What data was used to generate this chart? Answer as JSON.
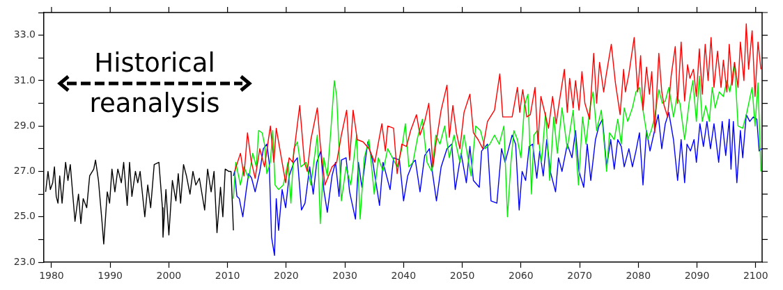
{
  "chart_data": {
    "type": "line",
    "marker": "none",
    "line_style": "solid",
    "grid": false,
    "legend": false,
    "xlim": [
      1978.7,
      2101.1
    ],
    "ylim": [
      23,
      34
    ],
    "xticks": [
      1980,
      1990,
      2000,
      2010,
      2020,
      2030,
      2040,
      2050,
      2060,
      2070,
      2080,
      2090,
      2100
    ],
    "yticks": [
      {
        "value": 23,
        "label": "23.0"
      },
      {
        "value": 24,
        "label": null
      },
      {
        "value": 25,
        "label": "25.0"
      },
      {
        "value": 26,
        "label": null
      },
      {
        "value": 27,
        "label": "27.0"
      },
      {
        "value": 28,
        "label": null
      },
      {
        "value": 29,
        "label": "29.0"
      },
      {
        "value": 30,
        "label": null
      },
      {
        "value": 31,
        "label": "31.0"
      },
      {
        "value": 32,
        "label": null
      },
      {
        "value": 33,
        "label": "33.0"
      },
      {
        "value": 34,
        "label": null
      }
    ],
    "annotations": [
      "Historical reanalysis"
    ],
    "series": [
      {
        "color": "#000000",
        "x": [
          1979.0,
          1979.4,
          1979.8,
          1980.2,
          1980.5,
          1980.8,
          1981.1,
          1981.4,
          1981.8,
          1982.4,
          1982.8,
          1983.2,
          1984.0,
          1984.6,
          1985.0,
          1985.4,
          1986.0,
          1986.5,
          1987.2,
          1987.5,
          1988.0,
          1988.6,
          1988.9,
          1989.5,
          1989.9,
          1990.3,
          1990.8,
          1991.3,
          1991.9,
          1992.3,
          1992.9,
          1993.3,
          1993.7,
          1994.3,
          1994.7,
          1995.1,
          1995.9,
          1996.4,
          1996.9,
          1997.5,
          1998.3,
          1998.9,
          1999.0,
          1999.5,
          2000.0,
          2000.6,
          2001.2,
          2001.6,
          2002.0,
          2002.5,
          2003.0,
          2003.6,
          2004.1,
          2004.6,
          2005.2,
          2006.1,
          2006.6,
          2007.2,
          2007.7,
          2008.2,
          2008.8,
          2009.2,
          2009.6,
          2010.2,
          2010.6,
          2011.0
        ],
        "values": [
          26.1,
          27.0,
          26.2,
          26.5,
          27.2,
          25.9,
          25.6,
          26.8,
          25.6,
          27.4,
          26.6,
          27.3,
          24.8,
          26.0,
          24.7,
          25.8,
          25.4,
          26.8,
          27.1,
          27.5,
          26.6,
          24.8,
          23.8,
          26.1,
          25.6,
          27.1,
          26.1,
          27.1,
          26.5,
          27.4,
          25.5,
          27.4,
          25.9,
          27.0,
          26.5,
          27.0,
          25.0,
          26.4,
          25.4,
          27.3,
          27.4,
          25.4,
          24.1,
          26.2,
          24.2,
          26.6,
          25.7,
          26.9,
          25.6,
          27.3,
          26.8,
          26.0,
          27.0,
          26.4,
          26.7,
          25.3,
          27.1,
          26.1,
          27.0,
          24.3,
          26.3,
          25.0,
          27.1,
          27.0,
          27.0,
          24.4
        ]
      },
      {
        "color": "#ff0000",
        "x": [
          2011.2,
          2012.2,
          2012.8,
          2013.4,
          2014.0,
          2014.7,
          2015.5,
          2016.3,
          2017.3,
          2017.9,
          2018.3,
          2018.9,
          2019.9,
          2020.5,
          2021.1,
          2022.3,
          2023.1,
          2023.6,
          2024.2,
          2025.3,
          2025.8,
          2026.6,
          2027.8,
          2028.6,
          2029.4,
          2030.3,
          2030.8,
          2031.4,
          2032.1,
          2033.1,
          2034.1,
          2035.1,
          2036.3,
          2036.9,
          2037.3,
          2038.3,
          2038.9,
          2039.7,
          2040.5,
          2041.2,
          2042.2,
          2042.8,
          2043.6,
          2044.3,
          2045.0,
          2045.5,
          2046.4,
          2047.4,
          2047.8,
          2048.4,
          2049.0,
          2049.6,
          2050.3,
          2051.3,
          2051.9,
          2052.7,
          2053.5,
          2054.3,
          2055.5,
          2056.4,
          2056.9,
          2058.5,
          2059.4,
          2059.8,
          2060.3,
          2061.0,
          2061.6,
          2062.4,
          2062.9,
          2063.4,
          2064.7,
          2065.4,
          2066.0,
          2066.5,
          2067.4,
          2067.9,
          2068.3,
          2068.9,
          2069.3,
          2069.9,
          2070.4,
          2070.9,
          2071.7,
          2072.4,
          2072.9,
          2073.4,
          2074.1,
          2074.5,
          2075.4,
          2076.1,
          2076.9,
          2077.5,
          2077.8,
          2078.4,
          2079.3,
          2079.9,
          2080.4,
          2080.8,
          2081.4,
          2081.9,
          2082.3,
          2082.8,
          2083.5,
          2084.0,
          2084.4,
          2085.0,
          2085.6,
          2086.3,
          2086.7,
          2087.3,
          2087.9,
          2088.4,
          2088.8,
          2089.4,
          2089.9,
          2090.4,
          2090.9,
          2091.4,
          2091.9,
          2092.4,
          2092.9,
          2093.5,
          2094.1,
          2094.5,
          2095.1,
          2095.5,
          2096.0,
          2096.4,
          2097.0,
          2097.4,
          2098.0,
          2098.4,
          2098.8,
          2099.4,
          2099.9,
          2100.4,
          2100.9
        ],
        "values": [
          27.0,
          27.8,
          26.8,
          28.7,
          27.5,
          26.7,
          28.0,
          27.2,
          29.0,
          27.4,
          28.9,
          28.0,
          26.5,
          27.6,
          27.4,
          29.9,
          27.4,
          27.0,
          28.4,
          29.8,
          28.2,
          26.4,
          27.2,
          27.4,
          28.6,
          29.7,
          27.5,
          29.7,
          28.4,
          28.3,
          28.0,
          27.4,
          29.1,
          27.9,
          29.0,
          28.9,
          26.9,
          28.2,
          28.1,
          28.8,
          29.5,
          28.6,
          29.2,
          30.0,
          27.2,
          28.2,
          29.7,
          30.8,
          28.5,
          29.9,
          28.7,
          28.0,
          29.6,
          30.4,
          28.7,
          28.4,
          28.0,
          29.2,
          29.7,
          31.3,
          29.4,
          29.4,
          30.7,
          29.6,
          30.6,
          29.4,
          29.5,
          30.7,
          28.2,
          30.3,
          28.9,
          30.3,
          29.1,
          30.0,
          31.5,
          29.6,
          31.1,
          29.8,
          31.0,
          29.7,
          31.4,
          30.0,
          29.3,
          32.2,
          30.0,
          31.8,
          30.5,
          31.2,
          32.6,
          30.9,
          29.5,
          31.5,
          30.5,
          31.3,
          32.9,
          30.5,
          32.1,
          29.7,
          31.6,
          30.4,
          31.4,
          28.7,
          32.2,
          30.5,
          29.9,
          29.4,
          31.2,
          32.5,
          30.0,
          32.7,
          30.1,
          31.7,
          31.1,
          31.5,
          30.3,
          32.4,
          30.4,
          32.6,
          31.0,
          32.9,
          30.7,
          32.3,
          30.7,
          31.9,
          30.5,
          32.6,
          30.8,
          31.8,
          30.7,
          32.7,
          31.0,
          33.5,
          31.5,
          33.2,
          30.3,
          32.7,
          31.5
        ]
      },
      {
        "color": "#00ee00",
        "x": [
          2011.0,
          2011.4,
          2012.2,
          2012.8,
          2013.6,
          2014.3,
          2014.9,
          2015.3,
          2015.9,
          2016.3,
          2016.7,
          2017.3,
          2017.7,
          2018.1,
          2018.7,
          2019.5,
          2020.3,
          2020.8,
          2021.3,
          2021.9,
          2022.5,
          2023.4,
          2024.2,
          2024.8,
          2025.3,
          2025.8,
          2026.4,
          2027.0,
          2027.6,
          2028.2,
          2028.6,
          2029.4,
          2030.2,
          2031.0,
          2032.0,
          2032.6,
          2033.3,
          2034.1,
          2035.0,
          2035.7,
          2036.5,
          2037.3,
          2038.1,
          2038.9,
          2039.7,
          2040.3,
          2040.9,
          2041.6,
          2042.4,
          2043.2,
          2044.0,
          2044.8,
          2045.5,
          2046.2,
          2047.0,
          2047.8,
          2048.6,
          2049.6,
          2050.3,
          2051.5,
          2052.3,
          2053.1,
          2053.9,
          2054.7,
          2055.5,
          2056.3,
          2057.1,
          2057.7,
          2058.3,
          2058.8,
          2059.4,
          2060.0,
          2060.6,
          2061.2,
          2061.8,
          2062.2,
          2062.8,
          2063.5,
          2064.2,
          2064.9,
          2065.6,
          2066.2,
          2067.0,
          2067.9,
          2068.9,
          2069.8,
          2070.5,
          2071.1,
          2071.7,
          2072.3,
          2072.9,
          2073.7,
          2074.6,
          2075.1,
          2075.9,
          2076.5,
          2077.1,
          2077.6,
          2078.2,
          2079.0,
          2079.6,
          2080.2,
          2080.8,
          2081.6,
          2082.2,
          2082.8,
          2083.5,
          2084.1,
          2084.6,
          2085.2,
          2086.0,
          2086.6,
          2087.1,
          2087.9,
          2088.7,
          2089.3,
          2089.9,
          2090.4,
          2090.9,
          2091.5,
          2092.1,
          2092.6,
          2093.1,
          2093.8,
          2094.5,
          2095.1,
          2095.6,
          2096.4,
          2097.0,
          2097.8,
          2098.5,
          2099.4,
          2099.9,
          2100.4,
          2100.9
        ],
        "values": [
          25.8,
          27.4,
          26.4,
          27.2,
          26.7,
          27.8,
          27.2,
          28.8,
          28.7,
          28.2,
          26.9,
          27.4,
          28.8,
          26.4,
          26.2,
          26.4,
          27.4,
          25.6,
          28.0,
          28.3,
          27.2,
          27.4,
          26.4,
          27.6,
          28.6,
          24.7,
          27.6,
          26.8,
          28.8,
          31.0,
          30.3,
          25.7,
          27.2,
          26.4,
          28.6,
          24.9,
          27.6,
          28.4,
          26.0,
          27.6,
          27.0,
          28.0,
          27.6,
          27.2,
          28.0,
          29.1,
          27.2,
          27.4,
          28.5,
          29.3,
          27.4,
          27.0,
          28.6,
          28.2,
          29.0,
          27.6,
          28.6,
          27.4,
          28.6,
          26.8,
          29.0,
          28.8,
          28.0,
          28.2,
          28.6,
          28.2,
          29.0,
          25.0,
          27.4,
          28.8,
          28.4,
          27.6,
          29.9,
          30.4,
          26.0,
          28.6,
          28.8,
          27.4,
          29.6,
          26.6,
          29.4,
          27.8,
          29.8,
          28.0,
          29.7,
          26.4,
          29.4,
          28.2,
          29.7,
          30.5,
          28.8,
          29.7,
          27.0,
          28.7,
          28.4,
          29.3,
          28.2,
          29.8,
          29.2,
          29.8,
          30.5,
          30.7,
          29.7,
          28.4,
          28.8,
          29.4,
          30.6,
          30.0,
          30.1,
          30.7,
          29.4,
          30.3,
          30.0,
          28.4,
          30.1,
          31.0,
          29.2,
          31.2,
          29.2,
          29.9,
          29.2,
          30.7,
          29.8,
          30.5,
          30.3,
          31.0,
          30.5,
          31.8,
          29.0,
          28.9,
          29.6,
          30.7,
          29.0,
          30.9,
          27.0
        ]
      },
      {
        "color": "#0000ff",
        "x": [
          2011.0,
          2011.2,
          2011.6,
          2012.0,
          2012.6,
          2013.2,
          2013.6,
          2014.1,
          2014.7,
          2015.5,
          2016.1,
          2016.7,
          2017.1,
          2017.5,
          2018.0,
          2018.3,
          2018.7,
          2019.3,
          2019.9,
          2020.5,
          2021.3,
          2021.9,
          2022.6,
          2023.2,
          2024.0,
          2024.6,
          2025.2,
          2025.9,
          2026.4,
          2027.0,
          2027.8,
          2028.4,
          2029.0,
          2029.4,
          2030.2,
          2030.8,
          2031.8,
          2032.3,
          2032.9,
          2033.9,
          2034.7,
          2035.9,
          2036.5,
          2037.7,
          2038.3,
          2039.3,
          2040.0,
          2040.7,
          2041.6,
          2042.0,
          2042.8,
          2043.6,
          2044.4,
          2045.0,
          2045.6,
          2046.4,
          2047.4,
          2048.2,
          2048.8,
          2049.8,
          2050.7,
          2051.3,
          2051.9,
          2052.9,
          2053.3,
          2054.3,
          2054.9,
          2055.9,
          2056.7,
          2057.3,
          2057.9,
          2058.5,
          2059.1,
          2059.7,
          2060.2,
          2060.8,
          2061.4,
          2062.0,
          2062.7,
          2063.2,
          2063.8,
          2064.4,
          2065.0,
          2065.9,
          2066.4,
          2067.0,
          2067.9,
          2068.7,
          2069.3,
          2069.9,
          2070.7,
          2071.3,
          2071.9,
          2072.7,
          2073.3,
          2073.9,
          2074.6,
          2075.3,
          2075.9,
          2076.5,
          2077.1,
          2077.6,
          2078.4,
          2079.0,
          2079.6,
          2080.2,
          2080.8,
          2081.4,
          2082.0,
          2082.6,
          2083.4,
          2084.0,
          2084.6,
          2085.2,
          2086.0,
          2086.7,
          2087.3,
          2087.9,
          2088.3,
          2088.9,
          2089.5,
          2089.9,
          2090.5,
          2091.1,
          2091.7,
          2092.3,
          2092.9,
          2093.7,
          2094.3,
          2094.9,
          2095.5,
          2095.8,
          2096.2,
          2096.8,
          2097.4,
          2097.8,
          2098.4,
          2099.0,
          2099.6,
          2100.2,
          2100.6,
          2101.0
        ],
        "values": [
          26.8,
          27.0,
          25.9,
          25.8,
          25.0,
          26.2,
          26.9,
          26.7,
          26.1,
          27.0,
          28.0,
          28.2,
          27.4,
          24.1,
          23.3,
          25.8,
          24.4,
          26.2,
          25.4,
          26.8,
          27.4,
          27.6,
          25.3,
          25.6,
          27.2,
          26.0,
          27.4,
          27.9,
          26.2,
          25.2,
          26.8,
          27.4,
          25.9,
          27.5,
          27.6,
          26.1,
          24.9,
          27.4,
          26.3,
          28.3,
          27.5,
          25.5,
          27.4,
          26.2,
          27.6,
          27.5,
          25.7,
          26.8,
          27.4,
          27.5,
          26.1,
          27.7,
          28.0,
          26.8,
          25.7,
          27.2,
          28.0,
          28.2,
          26.2,
          27.8,
          26.5,
          28.1,
          26.6,
          26.3,
          27.9,
          28.2,
          25.7,
          25.6,
          28.0,
          27.4,
          28.0,
          28.6,
          28.2,
          25.3,
          27.0,
          26.6,
          28.1,
          28.2,
          26.7,
          27.9,
          26.8,
          28.4,
          27.0,
          26.1,
          27.6,
          27.0,
          28.2,
          27.6,
          28.8,
          27.0,
          26.3,
          28.2,
          26.6,
          28.4,
          29.0,
          29.3,
          27.2,
          28.4,
          27.1,
          28.4,
          28.1,
          27.2,
          28.0,
          27.2,
          27.9,
          28.7,
          26.4,
          28.8,
          27.9,
          28.6,
          29.5,
          28.0,
          29.1,
          29.6,
          28.4,
          26.6,
          28.4,
          26.5,
          28.2,
          27.9,
          28.4,
          27.4,
          29.1,
          28.1,
          29.2,
          28.0,
          29.1,
          27.4,
          29.2,
          27.7,
          29.3,
          27.1,
          29.2,
          26.5,
          28.8,
          27.6,
          29.5,
          29.2,
          29.4,
          29.3,
          27.9,
          28.0
        ]
      }
    ]
  }
}
